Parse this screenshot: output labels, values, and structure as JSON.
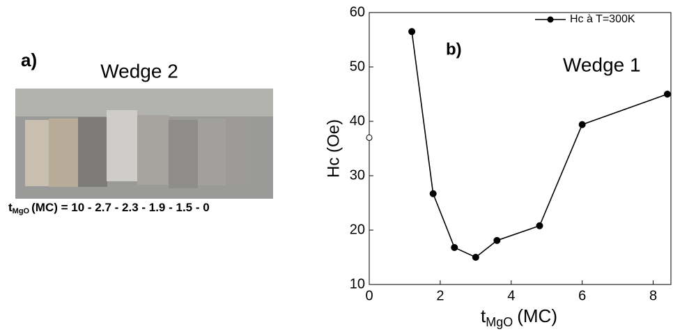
{
  "panel_a": {
    "label": "a)",
    "title": "Wedge 2",
    "caption_main": "t",
    "caption_sub": "MgO",
    "caption_rest": "(MC) =  10 - 2.7 - 2.3 - 1.9 - 1.5 - 0"
  },
  "chart_data": {
    "type": "line",
    "annotations": [
      "b)",
      "Wedge 1"
    ],
    "ylabel": "Hc (Oe)",
    "xlabel_main": "t",
    "xlabel_sub": "MgO",
    "xlabel_rest": "(MC)",
    "xlim": [
      0,
      8.5
    ],
    "xticks": [
      0,
      2,
      4,
      6,
      8
    ],
    "ylim": [
      10,
      60
    ],
    "yticks": [
      10,
      20,
      30,
      40,
      50,
      60
    ],
    "legend": "upper right",
    "series": [
      {
        "name": "Hc à T=300K",
        "color": "#000000",
        "marker": "filled",
        "x": [
          1.2,
          1.8,
          2.4,
          3.0,
          3.6,
          4.8,
          6.0,
          8.4
        ],
        "values": [
          56.5,
          26.7,
          16.8,
          15.0,
          18.1,
          20.8,
          39.4,
          45.0
        ]
      },
      {
        "color": "#000000",
        "marker": "open",
        "x": [
          0
        ],
        "values": [
          37
        ]
      }
    ]
  }
}
